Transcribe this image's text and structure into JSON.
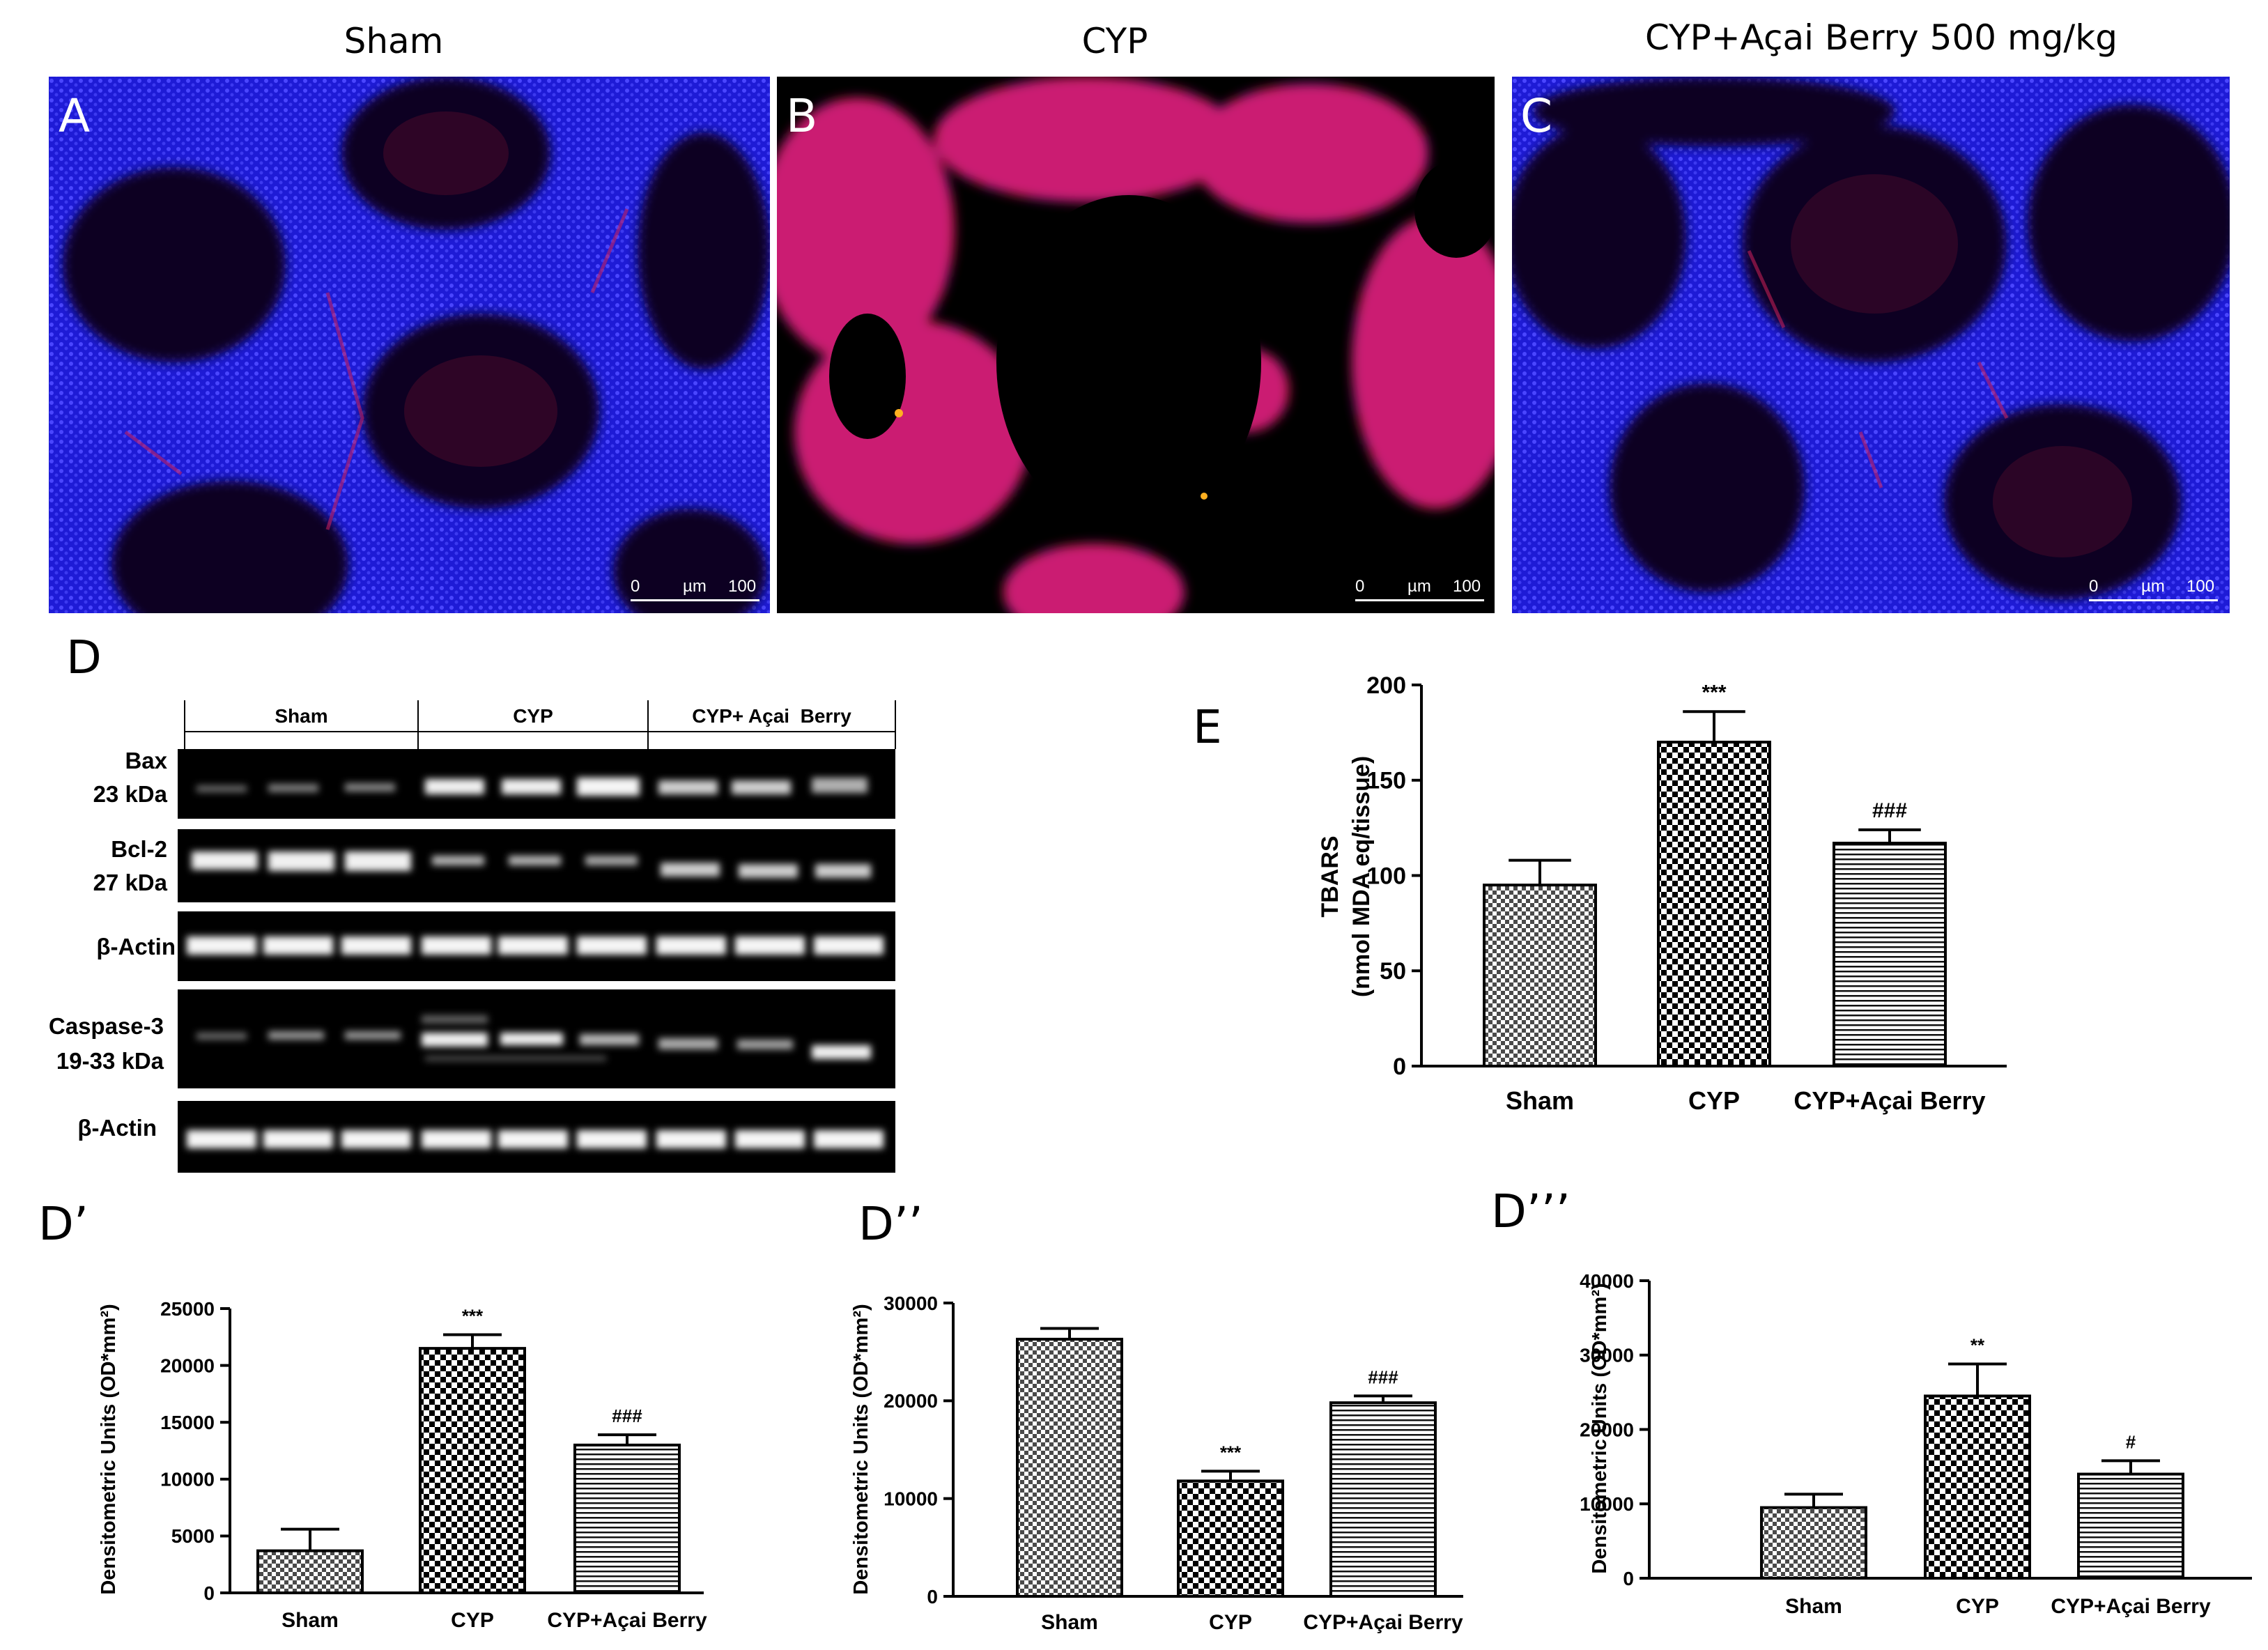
{
  "micrographs": [
    {
      "letter": "A",
      "title": "Sham",
      "scale": {
        "min": "0",
        "unit": "µm",
        "max": "100"
      }
    },
    {
      "letter": "B",
      "title": "CYP",
      "scale": {
        "min": "0",
        "unit": "µm",
        "max": "100"
      }
    },
    {
      "letter": "C",
      "title": "CYP+Açai Berry 500 mg/kg",
      "scale": {
        "min": "0",
        "unit": "µm",
        "max": "100"
      }
    }
  ],
  "western_blot": {
    "letter": "D",
    "groups": [
      "Sham",
      "CYP",
      "CYP+ Açai  Berry"
    ],
    "bands": [
      {
        "label_1": "Bax",
        "label_2": "23 kDa"
      },
      {
        "label_1": "Bcl-2",
        "label_2": "27 kDa"
      },
      {
        "label_1": "β-Actin",
        "label_2": ""
      },
      {
        "label_1": "Caspase-3",
        "label_2": "19-33 kDa"
      },
      {
        "label_1": "β-Actin",
        "label_2": ""
      }
    ]
  },
  "colors": {
    "fluor_blue": "#2f2cff",
    "fluor_red": "#ff1a3a",
    "background": "#000000"
  },
  "chart_data": [
    {
      "panel": "E",
      "type": "bar",
      "categories": [
        "Sham",
        "CYP",
        "CYP+Açai Berry"
      ],
      "values": [
        95,
        170,
        117
      ],
      "errors": [
        13,
        16,
        7
      ],
      "significance": [
        "",
        "***",
        "###"
      ],
      "patterns": [
        "checker-small",
        "checker-large",
        "horizontal-lines"
      ],
      "ylabel_1": "TBARS",
      "ylabel_2": "(nmol MDA eq/tissue)",
      "ylim": [
        0,
        200
      ],
      "yticks": [
        "0",
        "50",
        "100",
        "150",
        "200"
      ]
    },
    {
      "panel": "D’",
      "type": "bar",
      "categories": [
        "Sham",
        "CYP",
        "CYP+Açai Berry"
      ],
      "values": [
        3700,
        21500,
        13000
      ],
      "errors": [
        1900,
        1200,
        900
      ],
      "significance": [
        "",
        "***",
        "###"
      ],
      "patterns": [
        "checker-small",
        "checker-large",
        "horizontal-lines"
      ],
      "ylabel": "Densitometric Units (OD*mm²)",
      "ylim": [
        0,
        25000
      ],
      "yticks": [
        "0",
        "5000",
        "10000",
        "15000",
        "20000",
        "25000"
      ]
    },
    {
      "panel": "D’’",
      "type": "bar",
      "categories": [
        "Sham",
        "CYP",
        "CYP+Açai Berry"
      ],
      "values": [
        26300,
        11800,
        19800
      ],
      "errors": [
        1100,
        1000,
        700
      ],
      "significance": [
        "",
        "***",
        "###"
      ],
      "patterns": [
        "checker-small",
        "checker-large",
        "horizontal-lines"
      ],
      "ylabel": "Densitometric Units (OD*mm²)",
      "ylim": [
        0,
        30000
      ],
      "yticks": [
        "0",
        "10000",
        "20000",
        "30000"
      ]
    },
    {
      "panel": "D’’’",
      "type": "bar",
      "categories": [
        "Sham",
        "CYP",
        "CYP+Açai Berry"
      ],
      "values": [
        9500,
        24500,
        14000
      ],
      "errors": [
        1800,
        4300,
        1800
      ],
      "significance": [
        "",
        "**",
        "#"
      ],
      "patterns": [
        "checker-small",
        "checker-large",
        "horizontal-lines"
      ],
      "ylabel": "Densitometric Units (OD*mm²)",
      "ylim": [
        0,
        40000
      ],
      "yticks": [
        "0",
        "10000",
        "20000",
        "30000",
        "40000"
      ]
    }
  ]
}
